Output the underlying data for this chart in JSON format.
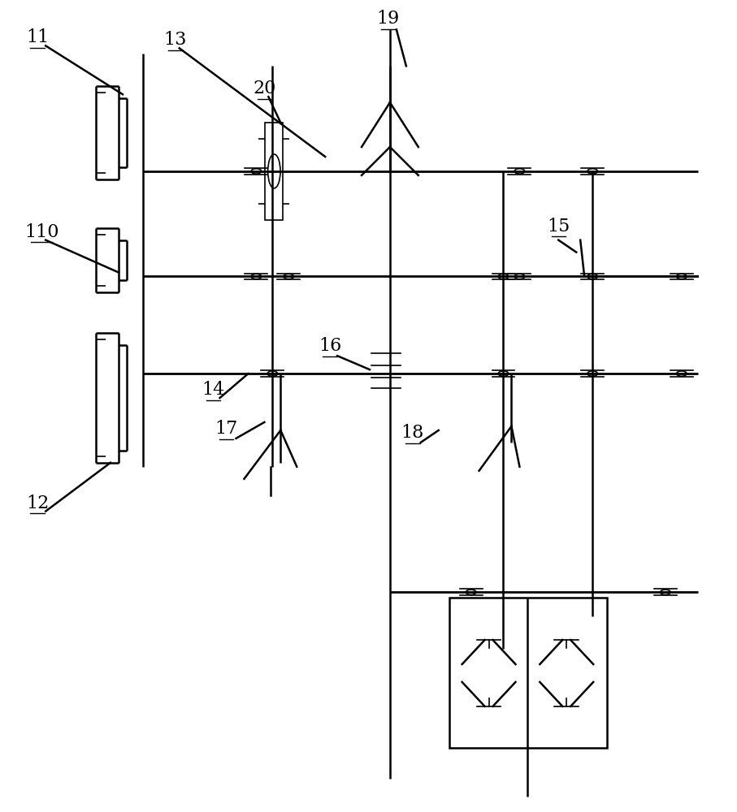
{
  "bg_color": "#ffffff",
  "lc": "#000000",
  "lw_shaft": 1.8,
  "lw_thin": 1.2,
  "lw_thick": 2.0,
  "figsize": [
    9.07,
    10.0
  ],
  "dpi": 100
}
